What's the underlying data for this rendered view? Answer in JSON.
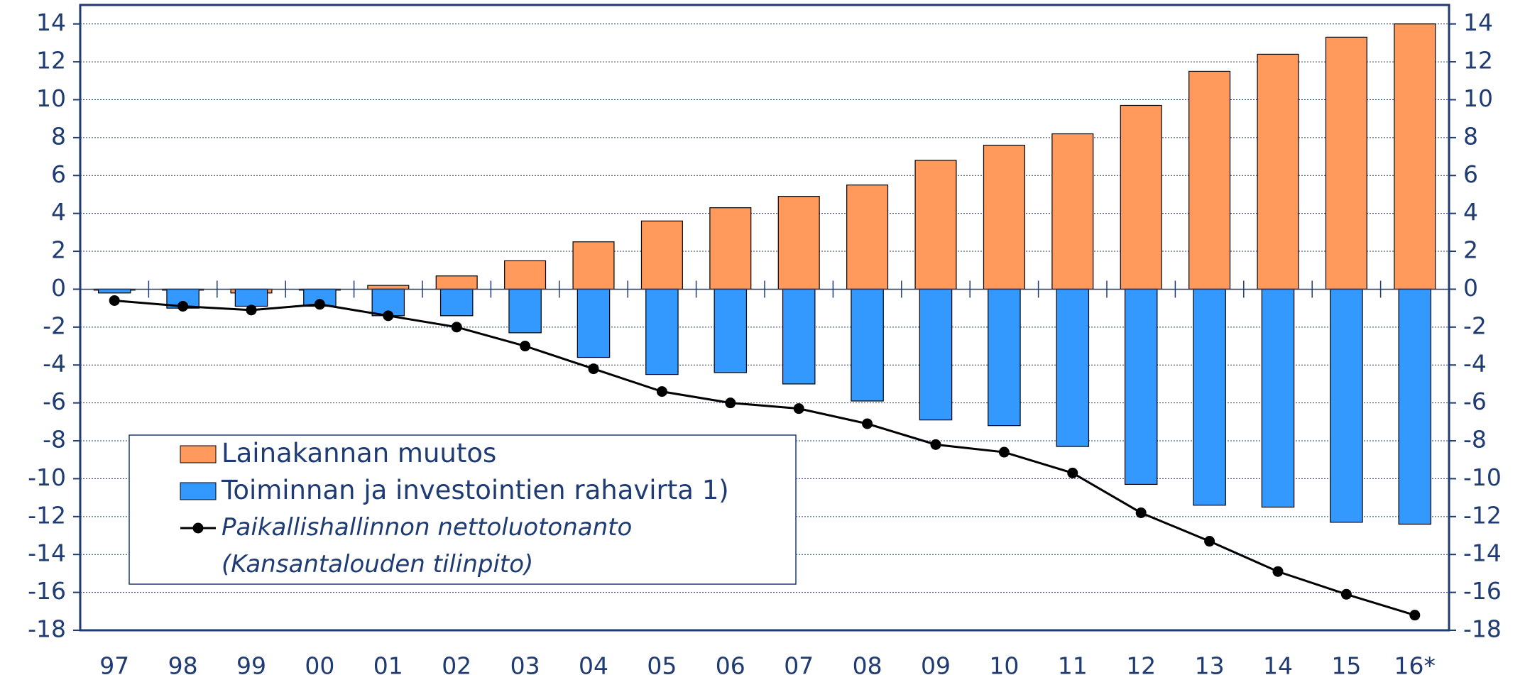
{
  "chart_data": {
    "type": "bar_line",
    "categories": [
      "97",
      "98",
      "99",
      "00",
      "01",
      "02",
      "03",
      "04",
      "05",
      "06",
      "07",
      "08",
      "09",
      "10",
      "11",
      "12",
      "13",
      "14",
      "15",
      "16*"
    ],
    "series": [
      {
        "name": "Lainakannan muutos",
        "type": "bar",
        "color": "#ff9a5c",
        "values": [
          -0.05,
          -0.05,
          -0.2,
          -0.05,
          0.2,
          0.7,
          1.5,
          2.5,
          3.6,
          4.3,
          4.9,
          5.5,
          6.8,
          7.6,
          8.2,
          9.7,
          11.5,
          12.4,
          13.3,
          14.0
        ]
      },
      {
        "name": "Toiminnan ja investointien rahavirta 1)",
        "type": "bar",
        "color": "#3399ff",
        "values": [
          -0.2,
          -1.0,
          -0.9,
          -0.9,
          -1.4,
          -1.4,
          -2.3,
          -3.6,
          -4.5,
          -4.4,
          -5.0,
          -5.9,
          -6.9,
          -7.2,
          -8.3,
          -10.3,
          -11.4,
          -11.5,
          -12.3,
          -12.4
        ]
      },
      {
        "name": "Paikallishallinnon nettoluotonanto\n(Kansantalouden tilinpito)",
        "type": "line",
        "color": "#000000",
        "values": [
          -0.6,
          -0.9,
          -1.1,
          -0.8,
          -1.4,
          -2.0,
          -3.0,
          -4.2,
          -5.4,
          -6.0,
          -6.3,
          -7.1,
          -8.2,
          -8.6,
          -9.7,
          -11.8,
          -13.3,
          -14.9,
          -16.1,
          -17.2
        ]
      }
    ],
    "ylim": [
      -18,
      15
    ],
    "yticks": [
      -18,
      -16,
      -14,
      -12,
      -10,
      -8,
      -6,
      -4,
      -2,
      0,
      2,
      4,
      6,
      8,
      10,
      12,
      14
    ],
    "y2lim": [
      -18,
      15
    ],
    "y2ticks": [
      -18,
      -16,
      -14,
      -12,
      -10,
      -8,
      -6,
      -4,
      -2,
      0,
      2,
      4,
      6,
      8,
      10,
      12,
      14
    ],
    "grid": true,
    "legend": "lower left"
  }
}
